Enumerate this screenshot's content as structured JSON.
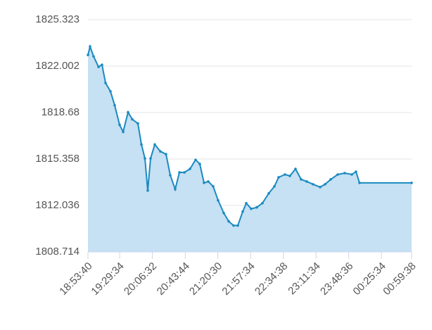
{
  "chart_data": {
    "type": "area",
    "x": [
      "18:53:40",
      "18:56:03",
      "19:00:02",
      "19:05:36",
      "19:09:35",
      "19:13:33",
      "19:19:07",
      "19:23:54",
      "19:29:28",
      "19:33:27",
      "19:39:01",
      "19:43:47",
      "19:50:09",
      "19:54:07",
      "19:58:06",
      "20:01:17",
      "20:04:28",
      "20:09:14",
      "20:15:36",
      "20:21:58",
      "20:26:44",
      "20:32:19",
      "20:37:05",
      "20:42:39",
      "20:49:01",
      "20:55:23",
      "21:00:09",
      "21:04:55",
      "21:09:42",
      "21:15:16",
      "21:20:50",
      "21:27:12",
      "21:32:46",
      "21:38:20",
      "21:43:06",
      "21:48:41",
      "21:52:39",
      "21:58:13",
      "22:04:35",
      "22:10:57",
      "22:18:07",
      "22:24:28",
      "22:29:15",
      "22:36:24",
      "22:41:59",
      "22:48:20",
      "22:54:42",
      "23:01:04",
      "23:08:14",
      "23:16:11",
      "23:21:45",
      "23:28:07",
      "23:36:04",
      "23:44:01",
      "23:51:59",
      "23:56:45",
      "00:00:44",
      "00:59:38"
    ],
    "values": [
      1822.8,
      1823.4,
      1822.7,
      1821.95,
      1822.1,
      1820.8,
      1820.2,
      1819.2,
      1817.8,
      1817.3,
      1818.7,
      1818.2,
      1817.9,
      1816.4,
      1815.4,
      1813.1,
      1815.4,
      1816.4,
      1815.9,
      1815.7,
      1814.2,
      1813.2,
      1814.4,
      1814.4,
      1814.65,
      1815.3,
      1815.0,
      1813.65,
      1813.75,
      1813.4,
      1812.4,
      1811.5,
      1810.9,
      1810.6,
      1810.6,
      1811.6,
      1812.2,
      1811.8,
      1811.9,
      1812.2,
      1812.9,
      1813.4,
      1814.05,
      1814.25,
      1814.15,
      1814.65,
      1813.9,
      1813.75,
      1813.55,
      1813.35,
      1813.55,
      1813.9,
      1814.25,
      1814.35,
      1814.25,
      1814.45,
      1813.65,
      1813.65
    ],
    "color": "#1a8ac0",
    "fill": "#c6e0f4",
    "xlim": [
      "18:53:40",
      "00:59:38"
    ],
    "xticks": [
      "18:53:40",
      "19:29:34",
      "20:06:32",
      "20:43:44",
      "21:20:30",
      "21:57:34",
      "22:34:38",
      "23:11:34",
      "23:48:36",
      "00:25:34",
      "00:59:38"
    ],
    "ylim": [
      1808.714,
      1825.323
    ],
    "yticks": [
      1808.714,
      1812.036,
      1815.358,
      1818.68,
      {
        "value": 1822.002,
        "label": "1822.002"
      },
      1825.323
    ],
    "grid": true
  }
}
